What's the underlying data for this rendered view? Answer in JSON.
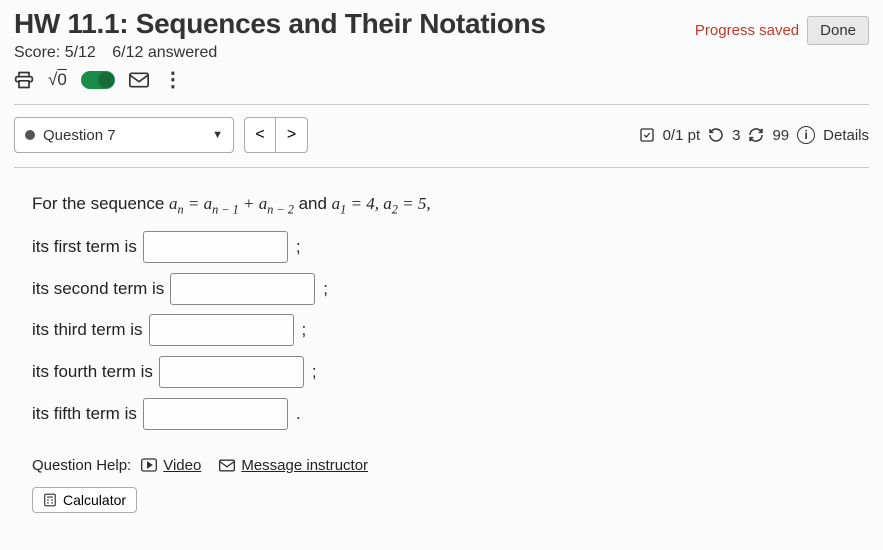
{
  "header": {
    "title": "HW 11.1: Sequences and Their Notations",
    "progress_label": "Progress saved",
    "done_label": "Done",
    "score_label": "Score: 5/12",
    "answered_label": "6/12 answered"
  },
  "toolbar": {
    "sqrt_label": "√0",
    "toggle_state": "on"
  },
  "question_selector": {
    "label": "Question 7",
    "prev": "<",
    "next": ">"
  },
  "meta": {
    "score": "0/1 pt",
    "attempts_icon_value": "3",
    "retries_value": "99",
    "details_label": "Details"
  },
  "question": {
    "prompt_prefix": "For the sequence ",
    "formula_html": "a<sub>n</sub> = a<sub>n − 1</sub> + a<sub>n − 2</sub>",
    "prompt_mid": " and ",
    "initials_html": "a<sub>1</sub> = 4, a<sub>2</sub> = 5,",
    "rows": [
      {
        "label": "its first term is",
        "punct": ";"
      },
      {
        "label": "its second term is",
        "punct": ";"
      },
      {
        "label": "its third term is",
        "punct": ";"
      },
      {
        "label": "its fourth term is",
        "punct": ";"
      },
      {
        "label": "its fifth term is",
        "punct": "."
      }
    ]
  },
  "help": {
    "label": "Question Help:",
    "video": "Video",
    "message": "Message instructor",
    "calculator": "Calculator"
  }
}
